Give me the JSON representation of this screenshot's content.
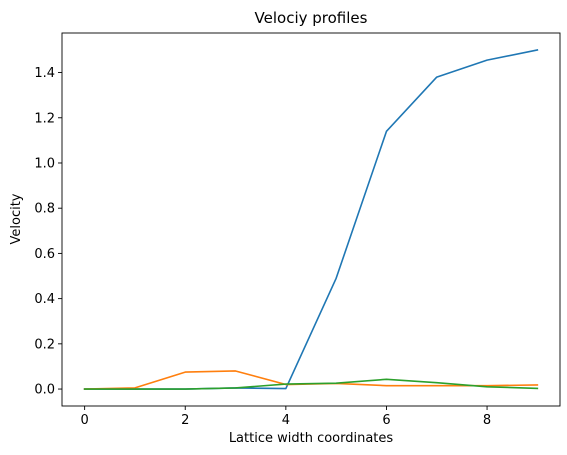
{
  "chart_data": {
    "type": "line",
    "title": "Velociy profiles",
    "xlabel": "Lattice width coordinates",
    "ylabel": "Velocity",
    "x": [
      0,
      1,
      2,
      3,
      4,
      5,
      6,
      7,
      8,
      9
    ],
    "xlim": [
      -0.45,
      9.45
    ],
    "ylim": [
      -0.075,
      1.575
    ],
    "xticks": [
      0,
      2,
      4,
      6,
      8
    ],
    "xtick_labels": [
      "0",
      "2",
      "4",
      "6",
      "8"
    ],
    "yticks": [
      0.0,
      0.2,
      0.4,
      0.6,
      0.8,
      1.0,
      1.2,
      1.4
    ],
    "ytick_labels": [
      "0.0",
      "0.2",
      "0.4",
      "0.6",
      "0.8",
      "1.0",
      "1.2",
      "1.4"
    ],
    "grid": false,
    "legend": "none",
    "series": [
      {
        "color": "#1f77b4",
        "values": [
          0.0,
          0.0,
          0.0,
          0.005,
          0.002,
          0.49,
          1.14,
          1.38,
          1.455,
          1.5
        ]
      },
      {
        "color": "#ff7f0e",
        "values": [
          0.0,
          0.005,
          0.075,
          0.08,
          0.02,
          0.025,
          0.015,
          0.015,
          0.015,
          0.018
        ]
      },
      {
        "color": "#2ca02c",
        "values": [
          0.0,
          0.0,
          0.0,
          0.005,
          0.022,
          0.026,
          0.043,
          0.028,
          0.01,
          0.003
        ]
      }
    ]
  }
}
